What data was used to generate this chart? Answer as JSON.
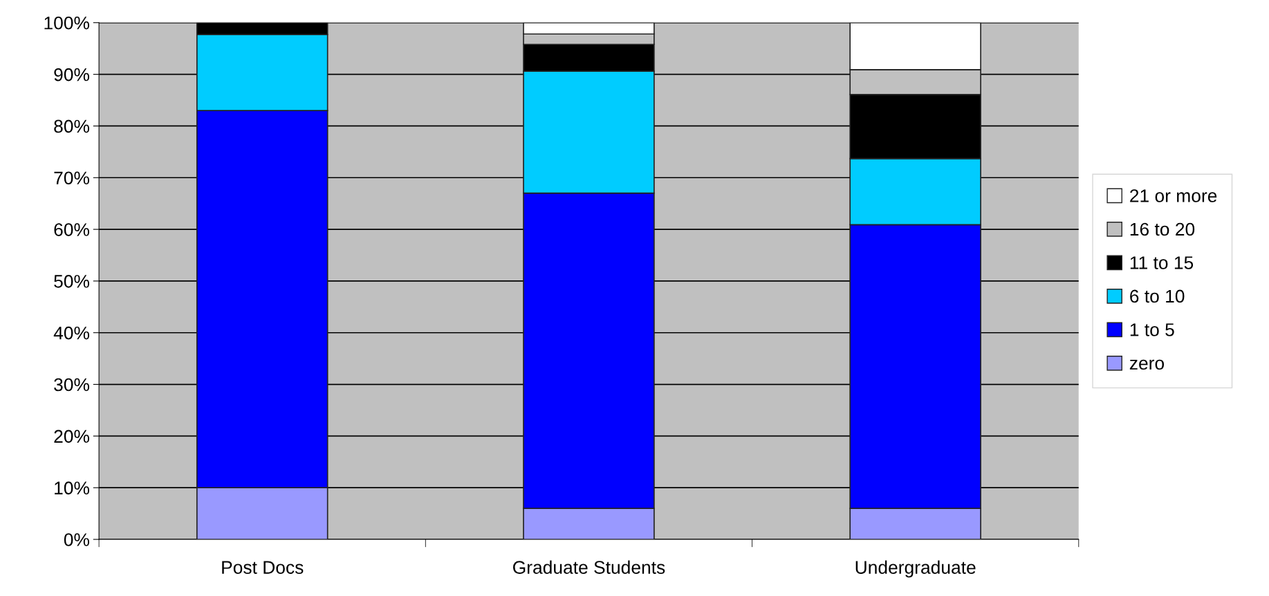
{
  "chart_data": {
    "type": "bar",
    "stacked": true,
    "categories": [
      "Post Docs",
      "Graduate Students",
      "Undergraduate"
    ],
    "series": [
      {
        "name": "zero",
        "color": "#9999ff",
        "values": [
          10,
          6,
          6
        ]
      },
      {
        "name": "1 to 5",
        "color": "#0000ff",
        "values": [
          73,
          61,
          54.9
        ]
      },
      {
        "name": "6 to 10",
        "color": "#00ccff",
        "values": [
          14.7,
          23.6,
          12.8
        ]
      },
      {
        "name": "11 to 15",
        "color": "#000000",
        "values": [
          2.3,
          5.2,
          12.4
        ]
      },
      {
        "name": "16 to 20",
        "color": "#c0c0c0",
        "values": [
          null,
          2,
          4.8
        ]
      },
      {
        "name": "21 or more",
        "color": "#ffffff",
        "values": [
          null,
          2.2,
          9.1
        ]
      }
    ],
    "ylim": [
      0,
      100
    ],
    "yticks": [
      {
        "value": 0,
        "label": "0%"
      },
      {
        "value": 10,
        "label": "10%"
      },
      {
        "value": 20,
        "label": "20%"
      },
      {
        "value": 30,
        "label": "30%"
      },
      {
        "value": 40,
        "label": "40%"
      },
      {
        "value": 50,
        "label": "50%"
      },
      {
        "value": 60,
        "label": "60%"
      },
      {
        "value": 70,
        "label": "70%"
      },
      {
        "value": 80,
        "label": "80%"
      },
      {
        "value": 90,
        "label": "90%"
      },
      {
        "value": 100,
        "label": "100%"
      }
    ],
    "grid": "y",
    "legend": "right"
  }
}
